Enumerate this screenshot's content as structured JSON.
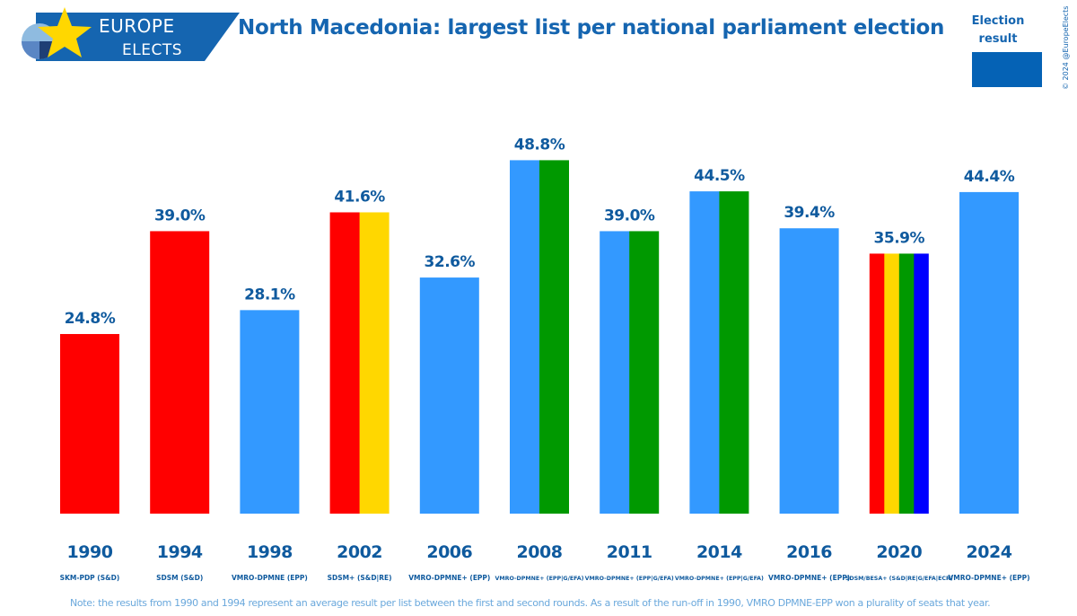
{
  "header": {
    "brand_top": "EUROPE",
    "brand_bottom": "ELECTS",
    "title": "North Macedonia: largest list per national parliament election"
  },
  "legend": {
    "title_line1": "Election",
    "title_line2": "result",
    "swatch_color": "#0562b5"
  },
  "copyright": "© 2024 @EuropeElects",
  "note": "Note: the results from 1990 and 1994 represent an average result per list between the first and second rounds. As a result of the run-off in 1990, VMRO DPMNE-EPP won a plurality of seats that year.",
  "colors": {
    "red": "#ff0000",
    "light_blue": "#3399ff",
    "yellow": "#ffd700",
    "green": "#009900",
    "blue": "#0000ff",
    "label_blue": "#0f5a9e",
    "brand_blue": "#1565b0"
  },
  "chart_data": {
    "type": "bar",
    "title": "North Macedonia: largest list per national parliament election",
    "ylim": [
      0,
      50
    ],
    "categories": [
      "1990",
      "1994",
      "1998",
      "2002",
      "2006",
      "2008",
      "2011",
      "2014",
      "2016",
      "2020",
      "2024"
    ],
    "values": [
      24.8,
      39.0,
      28.1,
      41.6,
      32.6,
      48.8,
      39.0,
      44.5,
      39.4,
      35.9,
      44.4
    ],
    "value_labels": [
      "24.8%",
      "39.0%",
      "28.1%",
      "41.6%",
      "32.6%",
      "48.8%",
      "39.0%",
      "44.5%",
      "39.4%",
      "35.9%",
      "44.4%"
    ],
    "lists": [
      "SKM-PDP (S&D)",
      "SDSM (S&D)",
      "VMRO-DPMNE (EPP)",
      "SDSM+ (S&D|RE)",
      "VMRO-DPMNE+ (EPP)",
      "VMRO-DPMNE+ (EPP|G/EFA)",
      "VMRO-DPMNE+ (EPP|G/EFA)",
      "VMRO-DPMNE+ (EPP|G/EFA)",
      "VMRO-DPMNE+ (EPP)",
      "SDSM/BESA+ (S&D|RE|G/EFA|ECR)",
      "VMRO-DPMNE+ (EPP)"
    ],
    "bar_colors": [
      [
        "red"
      ],
      [
        "red"
      ],
      [
        "light_blue"
      ],
      [
        "red",
        "yellow"
      ],
      [
        "light_blue"
      ],
      [
        "light_blue",
        "green"
      ],
      [
        "light_blue",
        "green"
      ],
      [
        "light_blue",
        "green"
      ],
      [
        "light_blue"
      ],
      [
        "red",
        "yellow",
        "green",
        "blue"
      ],
      [
        "light_blue"
      ]
    ],
    "grid": false
  }
}
